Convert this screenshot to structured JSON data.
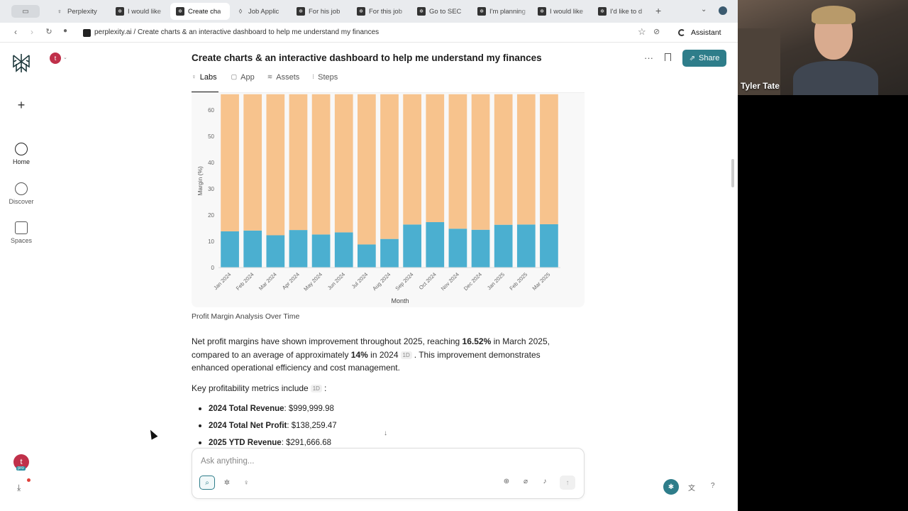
{
  "browser": {
    "tabs": [
      {
        "label": "Perplexity",
        "icon": "lightbulb-icon",
        "active": false
      },
      {
        "label": "I would like",
        "icon": "perplexity-icon",
        "active": false
      },
      {
        "label": "Create cha",
        "icon": "perplexity-icon",
        "active": true
      },
      {
        "label": "Job Applic",
        "icon": "bookmark-icon",
        "active": false
      },
      {
        "label": "For his job",
        "icon": "perplexity-icon",
        "active": false
      },
      {
        "label": "For this job",
        "icon": "perplexity-icon",
        "active": false
      },
      {
        "label": "Go to SEC",
        "icon": "perplexity-icon",
        "active": false
      },
      {
        "label": "I'm planning",
        "icon": "perplexity-icon",
        "active": false
      },
      {
        "label": "I would like",
        "icon": "perplexity-icon",
        "active": false
      },
      {
        "label": "I'd like to d",
        "icon": "perplexity-icon",
        "active": false
      }
    ],
    "url": "perplexity.ai / Create charts & an interactive dashboard to help me understand my finances",
    "assistant_label": "Assistant"
  },
  "sidebar": {
    "items": [
      {
        "label": "Home",
        "icon": "home-search-icon"
      },
      {
        "label": "Discover",
        "icon": "globe-icon"
      },
      {
        "label": "Spaces",
        "icon": "spaces-icon"
      }
    ],
    "avatar_letter": "t",
    "pro_badge": "pro"
  },
  "thread": {
    "title": "Create charts & an interactive dashboard to help me understand my finances",
    "share_label": "Share",
    "tabs": [
      {
        "label": "Labs",
        "icon": "bulb-icon",
        "active": true
      },
      {
        "label": "App",
        "icon": "app-icon",
        "active": false
      },
      {
        "label": "Assets",
        "icon": "layers-icon",
        "active": false
      },
      {
        "label": "Steps",
        "icon": "steps-icon",
        "active": false
      }
    ]
  },
  "chart_data": {
    "type": "bar",
    "stacked": true,
    "ylabel": "Margin (%)",
    "xlabel": "Month",
    "ylim": [
      0,
      66
    ],
    "yticks": [
      0,
      10,
      20,
      30,
      40,
      50,
      60
    ],
    "categories": [
      "Jan 2024",
      "Feb 2024",
      "Mar 2024",
      "Apr 2024",
      "May 2024",
      "Jun 2024",
      "Jul 2024",
      "Aug 2024",
      "Sep 2024",
      "Oct 2024",
      "Nov 2024",
      "Dec 2024",
      "Jan 2025",
      "Feb 2025",
      "Mar 2025"
    ],
    "series": [
      {
        "color": "#4bafd0",
        "values": [
          13.8,
          14.1,
          12.3,
          14.3,
          12.6,
          13.4,
          8.8,
          10.9,
          16.4,
          17.3,
          14.8,
          14.4,
          16.3,
          16.4,
          16.5
        ]
      },
      {
        "color": "#f7c38d",
        "values": [
          52.2,
          51.9,
          53.7,
          51.7,
          53.4,
          52.6,
          57.2,
          55.1,
          49.6,
          48.7,
          51.2,
          51.6,
          49.7,
          49.6,
          49.5
        ]
      }
    ],
    "caption": "Profit Margin Analysis Over Time"
  },
  "content": {
    "para_1": "Net profit margins have shown improvement throughout 2025, reaching ",
    "para_2": "16.52%",
    "para_3": " in March 2025, compared to an average of approximately ",
    "para_4": "14%",
    "para_5": " in 2024",
    "para_6": ". This improvement demonstrates enhanced operational efficiency and cost management.",
    "cite": "1D",
    "metrics_intro": "Key profitability metrics include",
    "metrics": [
      {
        "label": "2024 Total Revenue",
        "value": ": $999,999.98"
      },
      {
        "label": "2024 Total Net Profit",
        "value": ": $138,259.47"
      },
      {
        "label": "2025 YTD Revenue",
        "value": ": $291,666.68"
      }
    ]
  },
  "ask": {
    "placeholder": "Ask anything..."
  },
  "webcam": {
    "name": "Tyler Tate"
  },
  "colors": {
    "accent": "#2e7d8a",
    "bar_profit": "#4bafd0",
    "bar_remainder": "#f7c38d"
  }
}
